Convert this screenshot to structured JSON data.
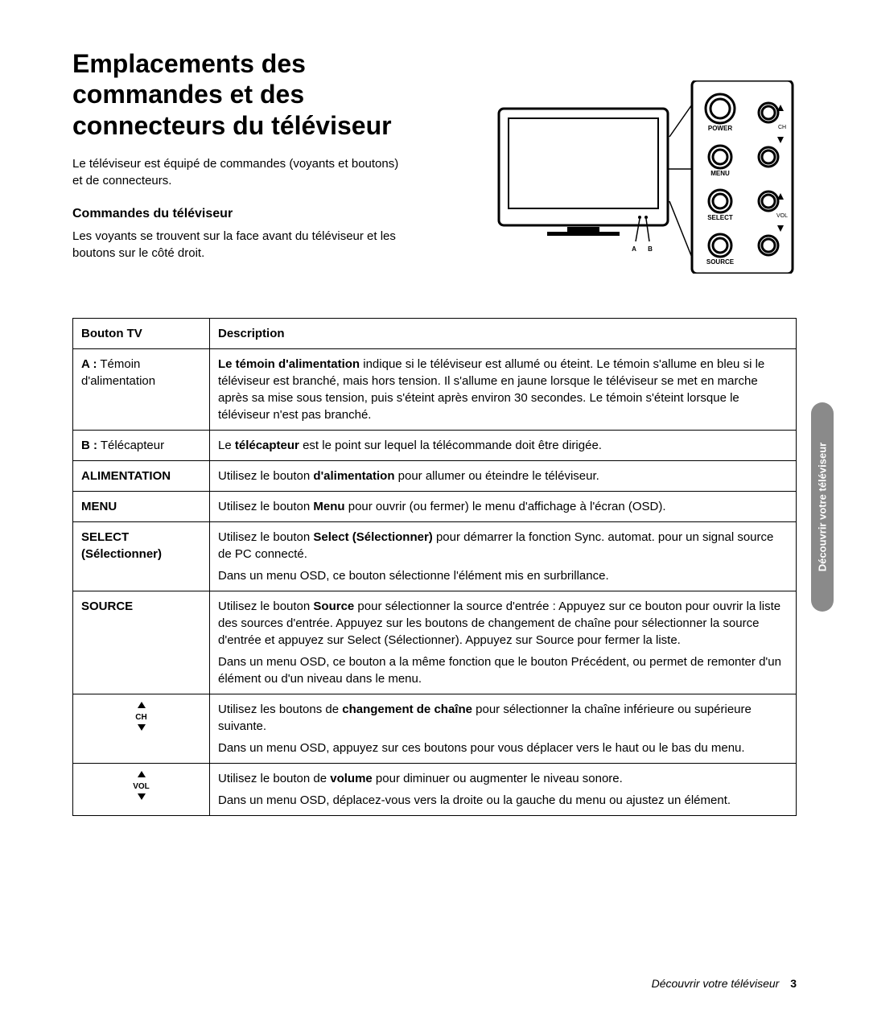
{
  "title": "Emplacements des commandes et des connecteurs du téléviseur",
  "intro": "Le téléviseur est équipé de commandes (voyants et boutons) et de connecteurs.",
  "section_heading": "Commandes du téléviseur",
  "section_text": "Les voyants se trouvent sur la face avant du téléviseur et les boutons sur le côté droit.",
  "side_tab": "Découvrir votre téléviseur",
  "footer_text": "Découvrir votre téléviseur",
  "page_number": "3",
  "diagram": {
    "labels": {
      "A": "A",
      "B": "B"
    },
    "buttons": {
      "power": "POWER",
      "menu": "MENU",
      "select": "SELECT",
      "source": "SOURCE",
      "ch": "CH",
      "vol": "VOL"
    }
  },
  "table": {
    "headers": {
      "col1": "Bouton TV",
      "col2": "Description"
    },
    "rows": [
      {
        "label_html": "<span class='bold'>A :</span> Témoin d'alimentation",
        "desc_html": "<span class='bold'>Le témoin d'alimentation</span> indique si le téléviseur est allumé ou éteint. Le témoin s'allume en bleu si le téléviseur est branché, mais hors tension. Il s'allume en jaune lorsque le téléviseur se met en marche après sa mise sous tension, puis s'éteint après environ 30 secondes. Le témoin s'éteint lorsque le téléviseur n'est pas branché."
      },
      {
        "label_html": "<span class='bold'>B :</span> Télécapteur",
        "desc_html": "Le <span class='bold'>télécapteur</span> est le point sur lequel la télécommande doit être dirigée."
      },
      {
        "label_html": "<span class='bold'>ALIMENTATION</span>",
        "desc_html": "Utilisez le bouton <span class='bold'>d'alimentation</span> pour allumer ou éteindre le téléviseur."
      },
      {
        "label_html": "<span class='bold'>MENU</span>",
        "desc_html": "Utilisez le bouton <span class='bold'>Menu</span> pour ouvrir (ou fermer) le menu d'affichage à l'écran (OSD)."
      },
      {
        "label_html": "<span class='bold'>SELECT (Sélectionner)</span>",
        "desc_html": "Utilisez le bouton <span class='bold'>Select (Sélectionner)</span> pour démarrer la fonction Sync. automat. pour un signal source de PC connecté.<span class='row-sub'>Dans un menu OSD, ce bouton sélectionne l'élément mis en surbrillance.</span>"
      },
      {
        "label_html": "<span class='bold'>SOURCE</span>",
        "desc_html": "Utilisez le bouton <span class='bold'>Source</span> pour sélectionner la source d'entrée : Appuyez sur ce bouton pour ouvrir la liste des sources d'entrée. Appuyez sur les boutons de changement de chaîne pour sélectionner la source d'entrée et appuyez sur Select (Sélectionner). Appuyez sur Source pour fermer la liste.<span class='row-sub'>Dans un menu OSD, ce bouton a la même fonction que le bouton Précédent, ou permet de remonter d'un élément ou d'un niveau dans le menu.</span>"
      },
      {
        "label_html": "<div class='ch-vol'><span class='arrow-up'></span><br><span class='bold'>CH</span><br><span class='arrow-down'></span></div>",
        "desc_html": "Utilisez les boutons de <span class='bold'>changement de chaîne</span> pour sélectionner la chaîne inférieure ou supérieure suivante.<span class='row-sub'>Dans un menu OSD, appuyez sur ces boutons pour vous déplacer vers le haut ou le bas du menu.</span>"
      },
      {
        "label_html": "<div class='ch-vol'><span class='arrow-up'></span><br><span class='bold'>VOL</span><br><span class='arrow-down'></span></div>",
        "desc_html": "Utilisez le bouton de <span class='bold'>volume</span> pour diminuer ou augmenter le niveau sonore.<span class='row-sub'>Dans un menu OSD, déplacez-vous vers la droite ou la gauche du menu ou ajustez un élément.</span>"
      }
    ]
  }
}
